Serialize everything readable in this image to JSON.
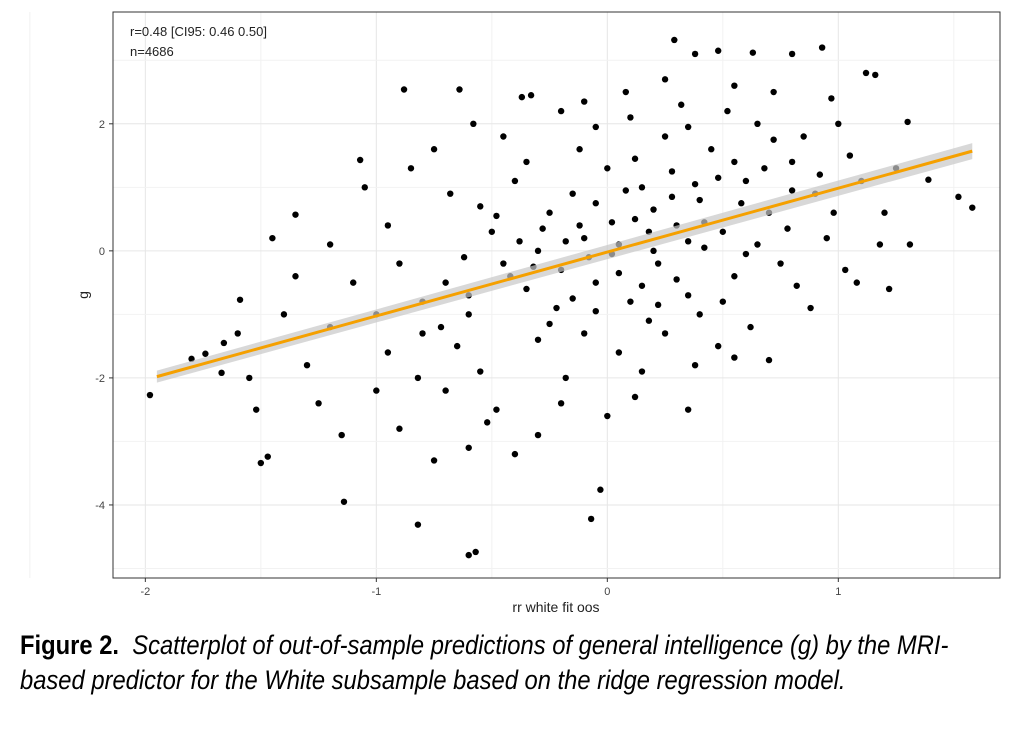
{
  "chart_data": {
    "type": "scatter",
    "xlabel": "rr white fit oos",
    "ylabel": "g",
    "xlim": [
      -2.14,
      1.7
    ],
    "ylim": [
      -5.15,
      3.76
    ],
    "xticks": [
      "-2",
      "-1",
      "0",
      "1"
    ],
    "yticks": [
      "-4",
      "-2",
      "0",
      "2"
    ],
    "grid": true,
    "annotations": [
      "r=0.48 [CI95: 0.46 0.50]",
      "n=4686"
    ],
    "point_color": "#000000",
    "fit_line": {
      "color": "#f5a000",
      "band_color": "#c8c8c8",
      "x": [
        -1.95,
        1.58
      ],
      "y": [
        -1.98,
        1.57
      ]
    },
    "points": [
      [
        -1.98,
        -2.27
      ],
      [
        0.29,
        3.32
      ],
      [
        -0.88,
        2.54
      ],
      [
        -0.64,
        2.54
      ],
      [
        0.93,
        3.2
      ],
      [
        -0.6,
        -4.79
      ],
      [
        -0.57,
        -4.74
      ],
      [
        -0.82,
        -4.31
      ],
      [
        -0.07,
        -4.22
      ],
      [
        -1.14,
        -3.95
      ],
      [
        1.58,
        0.68
      ],
      [
        1.52,
        0.85
      ],
      [
        1.39,
        1.12
      ],
      [
        -1.59,
        -0.77
      ],
      [
        -1.5,
        -3.34
      ],
      [
        -1.47,
        -3.24
      ],
      [
        -1.07,
        1.43
      ],
      [
        -1.35,
        0.57
      ],
      [
        1.3,
        2.03
      ],
      [
        1.16,
        2.77
      ],
      [
        -1.66,
        -1.45
      ],
      [
        -1.74,
        -1.62
      ],
      [
        -1.67,
        -1.92
      ],
      [
        -1.52,
        -2.5
      ],
      [
        -0.03,
        -3.76
      ],
      [
        0.35,
        -2.5
      ],
      [
        0.55,
        -1.68
      ],
      [
        0.7,
        -1.72
      ],
      [
        1.03,
        -0.3
      ],
      [
        1.18,
        0.1
      ],
      [
        1.31,
        0.1
      ],
      [
        1.22,
        -0.6
      ],
      [
        0.48,
        3.15
      ],
      [
        0.8,
        3.1
      ],
      [
        0.63,
        3.12
      ],
      [
        0.38,
        3.1
      ],
      [
        -0.33,
        2.45
      ],
      [
        -0.37,
        2.42
      ],
      [
        1.12,
        2.8
      ],
      [
        0.97,
        2.4
      ],
      [
        -0.1,
        0.2
      ],
      [
        0.05,
        0.1
      ],
      [
        0.12,
        0.5
      ],
      [
        -0.2,
        -0.3
      ],
      [
        0.3,
        0.4
      ],
      [
        0.22,
        -0.2
      ],
      [
        -0.35,
        -0.6
      ],
      [
        0.4,
        0.8
      ],
      [
        -0.05,
        -0.5
      ],
      [
        0.15,
        1.0
      ],
      [
        0.5,
        0.3
      ],
      [
        -0.45,
        -0.2
      ],
      [
        0.6,
        1.1
      ],
      [
        -0.25,
        0.6
      ],
      [
        0.35,
        -0.7
      ],
      [
        0.0,
        1.3
      ],
      [
        -0.6,
        -1.0
      ],
      [
        0.7,
        0.6
      ],
      [
        0.18,
        -1.1
      ],
      [
        -0.15,
        0.9
      ],
      [
        0.45,
        1.6
      ],
      [
        -0.5,
        0.3
      ],
      [
        0.25,
        1.8
      ],
      [
        -0.3,
        -1.4
      ],
      [
        0.55,
        -0.4
      ],
      [
        0.1,
        -0.8
      ],
      [
        -0.7,
        -0.5
      ],
      [
        0.8,
        1.4
      ],
      [
        -0.4,
        1.1
      ],
      [
        0.65,
        2.0
      ],
      [
        -0.8,
        -1.3
      ],
      [
        0.9,
        0.9
      ],
      [
        0.05,
        -1.6
      ],
      [
        -0.55,
        -1.9
      ],
      [
        0.32,
        2.3
      ],
      [
        -0.12,
        1.6
      ],
      [
        0.75,
        -0.2
      ],
      [
        -0.9,
        -0.2
      ],
      [
        0.2,
        0.0
      ],
      [
        -0.08,
        -0.1
      ],
      [
        0.42,
        0.05
      ],
      [
        -0.22,
        -0.9
      ],
      [
        0.58,
        0.75
      ],
      [
        0.02,
        0.45
      ],
      [
        -0.38,
        0.15
      ],
      [
        0.28,
        1.25
      ],
      [
        -0.65,
        -1.5
      ],
      [
        0.85,
        1.8
      ],
      [
        -0.18,
        -2.0
      ],
      [
        0.12,
        -2.3
      ],
      [
        -0.48,
        -2.5
      ],
      [
        -0.52,
        -2.7
      ],
      [
        -0.6,
        -3.1
      ],
      [
        -0.3,
        -2.9
      ],
      [
        0.0,
        -2.6
      ],
      [
        0.38,
        -1.8
      ],
      [
        -1.0,
        -1.0
      ],
      [
        -1.1,
        -0.5
      ],
      [
        -1.2,
        -1.2
      ],
      [
        -0.95,
        0.4
      ],
      [
        -1.05,
        1.0
      ],
      [
        -0.85,
        1.3
      ],
      [
        -0.75,
        1.6
      ],
      [
        -0.58,
        2.0
      ],
      [
        -0.45,
        1.8
      ],
      [
        -0.2,
        2.2
      ],
      [
        0.1,
        2.1
      ],
      [
        0.08,
        2.5
      ],
      [
        0.55,
        2.6
      ],
      [
        0.72,
        2.5
      ],
      [
        1.0,
        2.0
      ],
      [
        1.05,
        1.5
      ],
      [
        1.1,
        1.1
      ],
      [
        0.95,
        0.2
      ],
      [
        1.08,
        -0.5
      ],
      [
        0.88,
        -0.9
      ],
      [
        0.62,
        -1.2
      ],
      [
        0.48,
        -1.5
      ],
      [
        0.25,
        -1.3
      ],
      [
        -0.1,
        -1.3
      ],
      [
        -1.3,
        -1.8
      ],
      [
        -1.25,
        -2.4
      ],
      [
        -1.4,
        -1.0
      ],
      [
        -1.45,
        0.2
      ],
      [
        -1.15,
        -2.9
      ],
      [
        -1.0,
        -2.2
      ],
      [
        -0.9,
        -2.8
      ],
      [
        -0.75,
        -3.3
      ],
      [
        -0.7,
        -2.2
      ],
      [
        -0.4,
        -3.2
      ],
      [
        -0.2,
        -2.4
      ],
      [
        0.15,
        -1.9
      ],
      [
        -0.62,
        -0.1
      ],
      [
        -0.3,
        0.0
      ],
      [
        0.35,
        0.15
      ],
      [
        -0.05,
        0.75
      ],
      [
        0.6,
        -0.05
      ],
      [
        0.2,
        0.65
      ],
      [
        -0.42,
        -0.4
      ],
      [
        0.48,
        1.15
      ],
      [
        0.68,
        1.3
      ],
      [
        -0.15,
        -0.75
      ],
      [
        0.05,
        -0.35
      ],
      [
        0.3,
        -0.45
      ],
      [
        -0.28,
        0.35
      ],
      [
        0.78,
        0.35
      ],
      [
        0.92,
        1.2
      ],
      [
        -0.8,
        -0.8
      ],
      [
        -0.55,
        0.7
      ],
      [
        0.12,
        1.45
      ],
      [
        0.4,
        -1.0
      ],
      [
        -0.35,
        1.4
      ],
      [
        0.25,
        2.7
      ],
      [
        0.52,
        2.2
      ],
      [
        -0.05,
        1.95
      ],
      [
        -0.68,
        0.9
      ],
      [
        1.2,
        0.6
      ],
      [
        1.25,
        1.3
      ],
      [
        -1.6,
        -1.3
      ],
      [
        -1.55,
        -2.0
      ],
      [
        -1.8,
        -1.7
      ],
      [
        -1.35,
        -0.4
      ],
      [
        -1.2,
        0.1
      ],
      [
        -0.95,
        -1.6
      ],
      [
        -0.82,
        -2.0
      ],
      [
        0.82,
        -0.55
      ],
      [
        0.98,
        0.6
      ],
      [
        0.72,
        1.75
      ],
      [
        0.35,
        1.95
      ],
      [
        -0.1,
        2.35
      ],
      [
        0.02,
        -0.05
      ],
      [
        0.18,
        0.3
      ],
      [
        -0.18,
        0.15
      ],
      [
        0.28,
        0.85
      ],
      [
        -0.32,
        -0.25
      ],
      [
        0.42,
        0.45
      ],
      [
        -0.05,
        -0.95
      ],
      [
        0.55,
        1.4
      ],
      [
        -0.48,
        0.55
      ],
      [
        0.65,
        0.1
      ],
      [
        0.15,
        -0.55
      ],
      [
        -0.25,
        -1.15
      ],
      [
        0.38,
        1.05
      ],
      [
        -0.6,
        -0.7
      ],
      [
        0.8,
        0.95
      ],
      [
        0.08,
        0.95
      ],
      [
        -0.12,
        0.4
      ],
      [
        0.22,
        -0.85
      ],
      [
        -0.72,
        -1.2
      ],
      [
        0.5,
        -0.8
      ]
    ]
  },
  "caption": {
    "label": "Figure 2.",
    "text": "Scatterplot of out-of-sample predictions of general intelligence (g) by the MRI-based predictor for the White subsample based on the ridge regression model."
  }
}
